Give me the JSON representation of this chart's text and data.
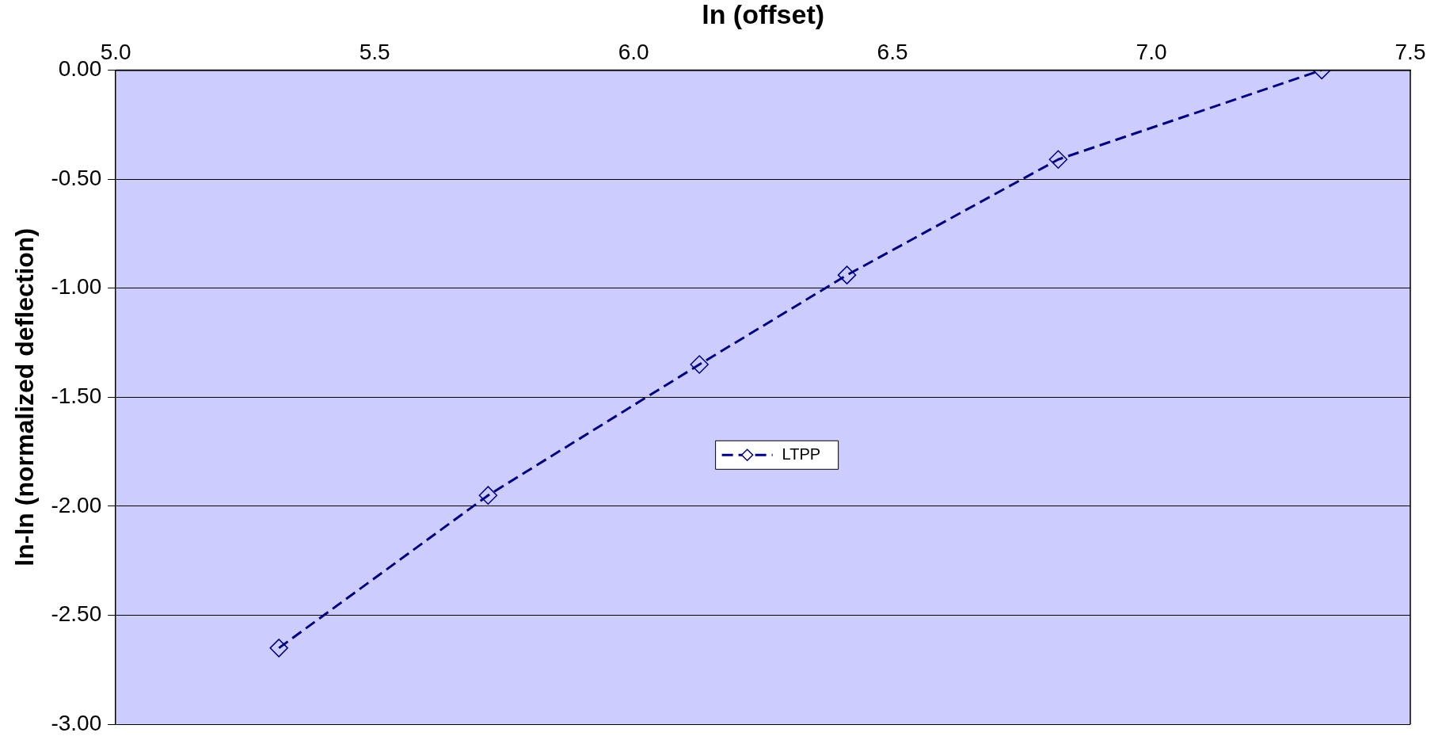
{
  "chart_data": {
    "type": "line",
    "xlabel": "ln (offset)",
    "ylabel": "ln-ln (normalized deflection)",
    "x": [
      5.315,
      5.719,
      6.127,
      6.412,
      6.82,
      7.329
    ],
    "series": [
      {
        "name": "LTPP",
        "color": "#000080",
        "values": [
          -2.65,
          -1.95,
          -1.35,
          -0.94,
          -0.41,
          0.0
        ]
      }
    ],
    "xlim": [
      5.0,
      7.5
    ],
    "xticks": [
      {
        "value": 5,
        "label": "5.0"
      },
      5.5,
      {
        "value": 6,
        "label": "6.0"
      },
      6.5,
      {
        "value": 7,
        "label": "7.0"
      },
      7.5
    ],
    "ylim": [
      -3,
      0
    ],
    "yticks": [
      {
        "value": -3,
        "label": "-3.00"
      },
      {
        "value": -2.5,
        "label": "-2.50"
      },
      {
        "value": -2,
        "label": "-2.00"
      },
      {
        "value": -1.5,
        "label": "-1.50"
      },
      {
        "value": -1,
        "label": "-1.00"
      },
      {
        "value": -0.5,
        "label": "-0.50"
      },
      {
        "value": 0,
        "label": "0.00"
      }
    ],
    "grid": "y",
    "legend": "center",
    "marker": "diamond",
    "line_style": "dashed"
  }
}
